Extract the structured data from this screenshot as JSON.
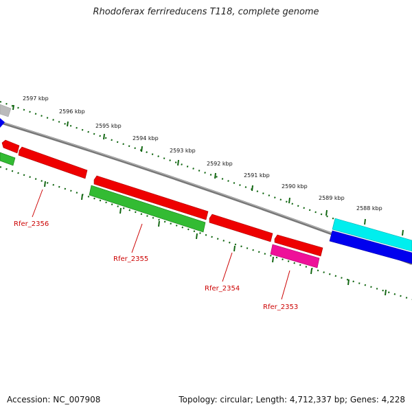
{
  "title": "Rhodoferax ferrireducens T118, complete genome",
  "footer": {
    "accession_label": "Accession: NC_007908",
    "stats_label": "Topology: circular; Length: 4,712,337 bp; Genes: 4,228"
  },
  "scale_labels": [
    "2597 kbp",
    "2596 kbp",
    "2595 kbp",
    "2594 kbp",
    "2593 kbp",
    "2592 kbp",
    "2591 kbp",
    "2590 kbp",
    "2589 kbp",
    "2588 kbp"
  ],
  "gene_labels": [
    "Rfer_2356",
    "Rfer_2355",
    "Rfer_2354",
    "Rfer_2353"
  ],
  "colors": {
    "backbone": "#888888",
    "forward_gene": "#ee0000",
    "reverse_gene_green": "#33bb33",
    "pink_gene": "#ee1199",
    "cyan_feature": "#00eeee",
    "blue_feature": "#0000ee",
    "gray_feature": "#bbbbbb",
    "scale_ticks": "#116611",
    "label_color": "#cc0000"
  }
}
